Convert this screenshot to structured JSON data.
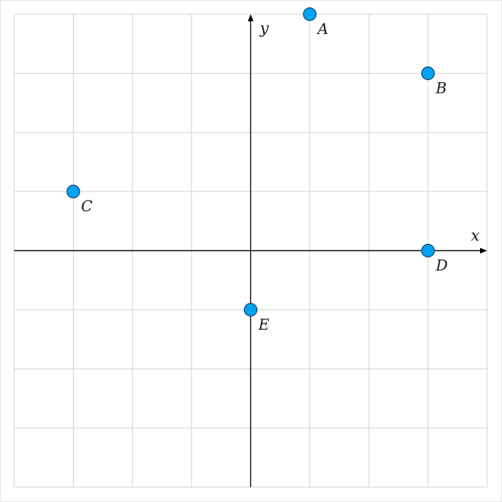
{
  "chart_data": {
    "type": "scatter",
    "title": "",
    "xlabel": "x",
    "ylabel": "y",
    "xlim": [
      -4,
      4
    ],
    "ylim": [
      -4,
      4
    ],
    "grid": true,
    "points": [
      {
        "label": "A",
        "x": 1,
        "y": 4
      },
      {
        "label": "B",
        "x": 3,
        "y": 3
      },
      {
        "label": "C",
        "x": -3,
        "y": 1
      },
      {
        "label": "D",
        "x": 3,
        "y": 0
      },
      {
        "label": "E",
        "x": 0,
        "y": -1
      }
    ]
  },
  "colors": {
    "grid": "#d0d0d0",
    "axis": "#000000",
    "point_fill": "#00a3f0",
    "point_stroke": "#1a3c6e"
  }
}
